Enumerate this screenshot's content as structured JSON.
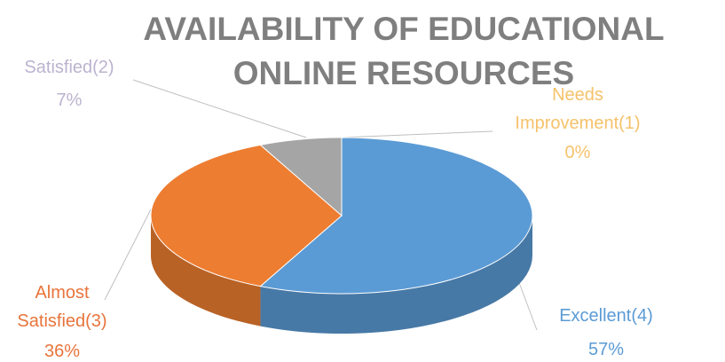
{
  "chart_data": {
    "type": "pie3d",
    "title": "AVAILABILITY OF EDUCATIONAL ONLINE RESOURCES",
    "categories": [
      "Excellent(4)",
      "Almost Satisfied(3)",
      "Satisfied(2)",
      "Needs Improvement(1)"
    ],
    "values": [
      57,
      36,
      7,
      0
    ],
    "value_labels": [
      "57%",
      "36%",
      "7%",
      "0%"
    ],
    "colors": [
      "#5b9bd5",
      "#ed7d31",
      "#a5a5a5",
      "#ffc000"
    ]
  }
}
